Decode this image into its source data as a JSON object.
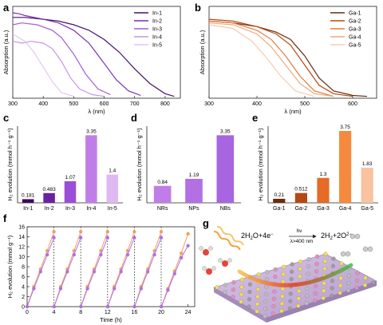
{
  "figure": {
    "eq_left": "2H",
    "eq_left_sub": "2",
    "eq_left_rest": "O+4e",
    "eq_left_sup": "−",
    "eq_hv": "hν",
    "eq_cond": "λ>400 nm",
    "eq_right": "2H",
    "eq_right_sub": "2",
    "eq_right_rest": "+2O",
    "eq_right_sup": "2−"
  },
  "chart_data": [
    {
      "panel": "a",
      "type": "line",
      "xlabel": "λ (nm)",
      "ylabel": "Absorption (a.u.)",
      "xlim": [
        300,
        850
      ],
      "xticks": [
        300,
        400,
        500,
        600,
        700,
        800
      ],
      "legend": "top-right",
      "colors": [
        "#4b0f6e",
        "#7b2fb0",
        "#a25fd4",
        "#c694e6",
        "#e2c6f4"
      ],
      "series": [
        {
          "name": "In-1",
          "x": [
            300,
            340,
            400,
            450,
            500,
            550,
            600,
            650,
            700,
            750,
            800,
            830
          ],
          "y": [
            0.88,
            0.88,
            0.86,
            0.84,
            0.8,
            0.74,
            0.64,
            0.5,
            0.32,
            0.16,
            0.05,
            0.02
          ]
        },
        {
          "name": "In-2",
          "x": [
            300,
            320,
            340,
            400,
            450,
            500,
            550,
            600,
            640,
            680,
            720
          ],
          "y": [
            0.93,
            0.92,
            0.9,
            0.86,
            0.82,
            0.74,
            0.6,
            0.38,
            0.2,
            0.08,
            0.03
          ]
        },
        {
          "name": "In-3",
          "x": [
            300,
            330,
            380,
            430,
            460,
            500,
            540,
            580,
            620
          ],
          "y": [
            0.8,
            0.82,
            0.8,
            0.74,
            0.66,
            0.48,
            0.26,
            0.1,
            0.04
          ]
        },
        {
          "name": "In-4",
          "x": [
            300,
            330,
            360,
            400,
            430,
            460,
            490,
            520,
            560,
            600
          ],
          "y": [
            0.62,
            0.6,
            0.62,
            0.6,
            0.54,
            0.4,
            0.22,
            0.1,
            0.04,
            0.02
          ]
        },
        {
          "name": "In-5",
          "x": [
            300,
            320,
            340,
            370,
            400,
            430,
            460,
            500
          ],
          "y": [
            0.7,
            0.66,
            0.62,
            0.5,
            0.34,
            0.18,
            0.06,
            0.02
          ]
        }
      ]
    },
    {
      "panel": "b",
      "type": "line",
      "xlabel": "λ (nm)",
      "ylabel": "Absorption (a.u.)",
      "xlim": [
        300,
        650
      ],
      "xticks": [
        300,
        400,
        500,
        600
      ],
      "legend": "top-right",
      "colors": [
        "#6b2a0c",
        "#b34a14",
        "#e07b3b",
        "#f0a978",
        "#f6ccb0"
      ],
      "series": [
        {
          "name": "Ga-1",
          "x": [
            300,
            350,
            400,
            440,
            470,
            500,
            530,
            560,
            600,
            630
          ],
          "y": [
            0.84,
            0.82,
            0.78,
            0.72,
            0.64,
            0.46,
            0.22,
            0.08,
            0.03,
            0.02
          ]
        },
        {
          "name": "Ga-2",
          "x": [
            300,
            350,
            400,
            440,
            470,
            500,
            530,
            560,
            600
          ],
          "y": [
            0.86,
            0.84,
            0.78,
            0.7,
            0.58,
            0.36,
            0.14,
            0.05,
            0.02
          ]
        },
        {
          "name": "Ga-3",
          "x": [
            300,
            350,
            400,
            430,
            460,
            490,
            520,
            560
          ],
          "y": [
            0.84,
            0.82,
            0.74,
            0.64,
            0.46,
            0.24,
            0.08,
            0.02
          ]
        },
        {
          "name": "Ga-4",
          "x": [
            300,
            350,
            400,
            430,
            460,
            490,
            520,
            560
          ],
          "y": [
            0.82,
            0.8,
            0.7,
            0.56,
            0.36,
            0.16,
            0.05,
            0.02
          ]
        },
        {
          "name": "Ga-5",
          "x": [
            300,
            350,
            390,
            420,
            450,
            480,
            520
          ],
          "y": [
            0.8,
            0.76,
            0.62,
            0.44,
            0.24,
            0.08,
            0.02
          ]
        }
      ]
    },
    {
      "panel": "c",
      "type": "bar",
      "ylabel": "H₂ evolution (mmol h⁻¹ g⁻¹)",
      "ylim": [
        0,
        3.8
      ],
      "categories": [
        "In-1",
        "In-2",
        "In-3",
        "In-4",
        "In-5"
      ],
      "values": [
        0.181,
        0.483,
        1.07,
        3.35,
        1.4
      ],
      "value_labels": [
        "0.181",
        "0.483",
        "1.07",
        "3.35",
        "1.4"
      ],
      "colors": [
        "#3d0a5c",
        "#6b22a0",
        "#9a4fd6",
        "#c07de8",
        "#e0b8f2"
      ]
    },
    {
      "panel": "d",
      "type": "bar",
      "ylabel": "H₂ evolution (mmol h⁻¹ g⁻¹)",
      "ylim": [
        0,
        3.8
      ],
      "categories": [
        "NRs",
        "NPs",
        "NBs"
      ],
      "values": [
        0.84,
        1.19,
        3.35
      ],
      "value_labels": [
        "0.84",
        "1.19",
        "3.35"
      ],
      "colors": [
        "#c07de8",
        "#b270e4",
        "#a865e2"
      ]
    },
    {
      "panel": "e",
      "type": "bar",
      "ylabel": "H₂ evolution (mmol h⁻¹ g⁻¹)",
      "ylim": [
        0,
        4.0
      ],
      "categories": [
        "Ga-1",
        "Ga-2",
        "Ga-3",
        "Ga-4",
        "Ga-5"
      ],
      "values": [
        0.21,
        0.512,
        1.3,
        3.75,
        1.83
      ],
      "value_labels": [
        "0.21",
        "0.512",
        "1.3",
        "3.75",
        "1.83"
      ],
      "colors": [
        "#6b2a0c",
        "#b34a14",
        "#e56b26",
        "#f58a3e",
        "#f8c39e"
      ]
    },
    {
      "panel": "f",
      "type": "scatter",
      "xlabel": "Time (h)",
      "ylabel": "H₂ evolution (mmol g⁻¹)",
      "xlim": [
        0,
        25
      ],
      "ylim": [
        0,
        16
      ],
      "xticks": [
        0,
        4,
        8,
        12,
        16,
        20,
        24
      ],
      "yticks": [
        0,
        2,
        4,
        6,
        8,
        10,
        12,
        14,
        16
      ],
      "dividers": [
        4,
        8,
        12,
        16,
        20
      ],
      "series": [
        {
          "color": "#f0a060",
          "x": [
            0,
            1,
            2,
            3,
            4,
            4.02,
            5,
            6,
            7,
            8,
            8.02,
            9,
            10,
            11,
            12,
            12.02,
            13,
            14,
            15,
            16,
            16.02,
            17,
            18,
            19,
            20,
            20.02,
            21,
            22,
            23,
            24
          ],
          "y": [
            0,
            4,
            7.5,
            11.2,
            15,
            0,
            4,
            7.5,
            11.2,
            15,
            0,
            4,
            7.5,
            11.2,
            15,
            0,
            4,
            7.5,
            11.2,
            15,
            0,
            4,
            7.5,
            11.2,
            15,
            0,
            3.6,
            7.1,
            10.7,
            14.6
          ]
        },
        {
          "color": "#b070e0",
          "x": [
            0,
            1,
            2,
            3,
            4,
            4.02,
            5,
            6,
            7,
            8,
            8.02,
            9,
            10,
            11,
            12,
            12.02,
            13,
            14,
            15,
            16,
            16.02,
            17,
            18,
            19,
            20,
            20.02,
            21,
            22,
            23,
            24
          ],
          "y": [
            0,
            3.6,
            7,
            10.4,
            13.8,
            0,
            3.6,
            7,
            10.4,
            13.8,
            0,
            3.6,
            7,
            10.4,
            13.8,
            0,
            3.6,
            7,
            10.4,
            13.8,
            0,
            3.6,
            7,
            10.4,
            13.8,
            0,
            3.3,
            6.6,
            9.8,
            12.2
          ]
        }
      ]
    }
  ]
}
